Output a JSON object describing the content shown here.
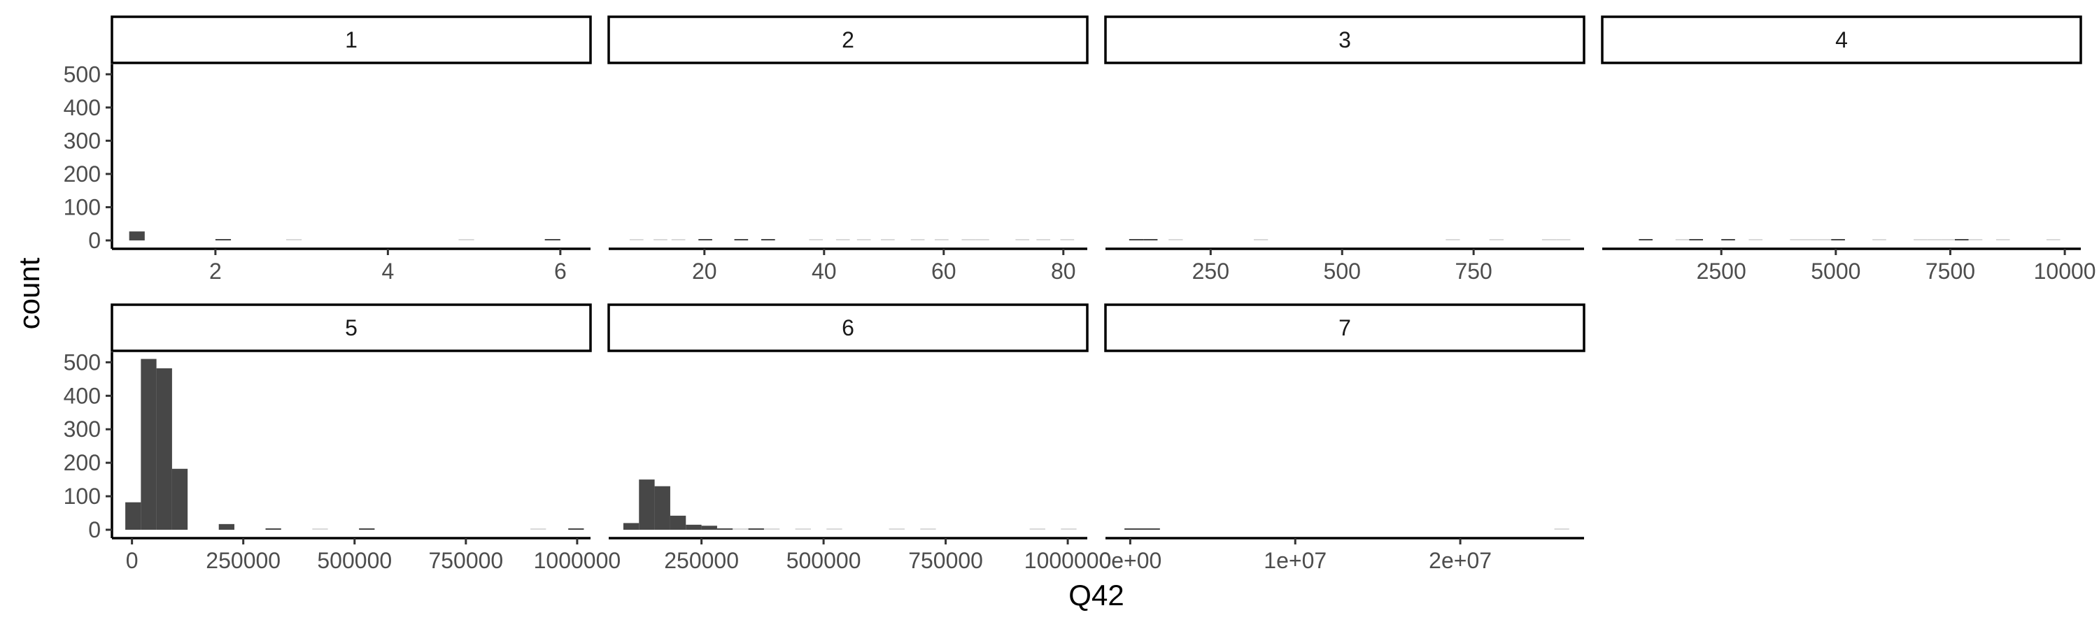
{
  "chart_data": {
    "type": "bar",
    "subtype": "faceted-histogram",
    "xlabel": "Q42",
    "ylabel": "count",
    "ylim": [
      0,
      530
    ],
    "y_ticks": [
      0,
      100,
      200,
      300,
      400,
      500
    ],
    "y_tick_labels": [
      "0",
      "100",
      "200",
      "300",
      "400",
      "500"
    ],
    "grid": false,
    "bar_color": "#474747",
    "faint_color": "#d9d9d9",
    "facets": [
      {
        "label": "1",
        "xlim": [
          0.8,
          6.35
        ],
        "x_ticks": [
          2,
          4,
          6
        ],
        "x_tick_labels": [
          "2",
          "4",
          "6"
        ],
        "bins": [
          {
            "x0": 1.0,
            "x1": 1.18,
            "count": 27
          },
          {
            "x0": 2.0,
            "x1": 2.18,
            "count": 2
          },
          {
            "x0": 2.82,
            "x1": 3.0,
            "count": 1
          },
          {
            "x0": 4.82,
            "x1": 5.0,
            "count": 1
          },
          {
            "x0": 5.82,
            "x1": 6.0,
            "count": 2
          }
        ]
      },
      {
        "label": "2",
        "xlim": [
          4,
          84
        ],
        "x_ticks": [
          20,
          40,
          60,
          80
        ],
        "x_tick_labels": [
          "20",
          "40",
          "60",
          "80"
        ],
        "bins": [
          {
            "x0": 7.5,
            "x1": 9.8,
            "count": 1
          },
          {
            "x0": 11.5,
            "x1": 13.8,
            "count": 1
          },
          {
            "x0": 14.5,
            "x1": 16.8,
            "count": 1
          },
          {
            "x0": 19.0,
            "x1": 21.3,
            "count": 3
          },
          {
            "x0": 25.0,
            "x1": 27.3,
            "count": 3
          },
          {
            "x0": 29.5,
            "x1": 31.8,
            "count": 2
          },
          {
            "x0": 37.5,
            "x1": 39.8,
            "count": 1
          },
          {
            "x0": 42.0,
            "x1": 44.3,
            "count": 1
          },
          {
            "x0": 45.5,
            "x1": 47.8,
            "count": 1
          },
          {
            "x0": 49.5,
            "x1": 51.8,
            "count": 1
          },
          {
            "x0": 54.5,
            "x1": 56.8,
            "count": 1
          },
          {
            "x0": 58.5,
            "x1": 60.8,
            "count": 1
          },
          {
            "x0": 63.0,
            "x1": 65.3,
            "count": 1
          },
          {
            "x0": 65.3,
            "x1": 67.6,
            "count": 1
          },
          {
            "x0": 72.0,
            "x1": 74.3,
            "count": 1
          },
          {
            "x0": 75.5,
            "x1": 77.8,
            "count": 1
          },
          {
            "x0": 79.5,
            "x1": 81.8,
            "count": 1
          }
        ]
      },
      {
        "label": "3",
        "xlim": [
          50,
          960
        ],
        "x_ticks": [
          250,
          500,
          750
        ],
        "x_tick_labels": [
          "250",
          "500",
          "750"
        ],
        "bins": [
          {
            "x0": 95,
            "x1": 122,
            "count": 4
          },
          {
            "x0": 122,
            "x1": 149,
            "count": 2
          },
          {
            "x0": 170,
            "x1": 197,
            "count": 1
          },
          {
            "x0": 332,
            "x1": 359,
            "count": 1
          },
          {
            "x0": 697,
            "x1": 724,
            "count": 1
          },
          {
            "x0": 780,
            "x1": 807,
            "count": 1
          },
          {
            "x0": 880,
            "x1": 907,
            "count": 1
          },
          {
            "x0": 907,
            "x1": 934,
            "count": 1
          }
        ]
      },
      {
        "label": "4",
        "xlim": [
          -100,
          10350
        ],
        "x_ticks": [
          2500,
          5000,
          7500,
          10000
        ],
        "x_tick_labels": [
          "2500",
          "5000",
          "7500",
          "10000"
        ],
        "bins": [
          {
            "x0": 700,
            "x1": 1000,
            "count": 4
          },
          {
            "x0": 1500,
            "x1": 1800,
            "count": 1
          },
          {
            "x0": 1800,
            "x1": 2100,
            "count": 2
          },
          {
            "x0": 2500,
            "x1": 2800,
            "count": 2
          },
          {
            "x0": 3100,
            "x1": 3400,
            "count": 1
          },
          {
            "x0": 4000,
            "x1": 4300,
            "count": 1
          },
          {
            "x0": 4300,
            "x1": 4600,
            "count": 1
          },
          {
            "x0": 4600,
            "x1": 4900,
            "count": 1
          },
          {
            "x0": 4900,
            "x1": 5200,
            "count": 3
          },
          {
            "x0": 5800,
            "x1": 6100,
            "count": 1
          },
          {
            "x0": 6700,
            "x1": 7000,
            "count": 1
          },
          {
            "x0": 7000,
            "x1": 7300,
            "count": 1
          },
          {
            "x0": 7300,
            "x1": 7600,
            "count": 1
          },
          {
            "x0": 7600,
            "x1": 7900,
            "count": 2
          },
          {
            "x0": 7900,
            "x1": 8200,
            "count": 1
          },
          {
            "x0": 8500,
            "x1": 8800,
            "count": 1
          },
          {
            "x0": 9600,
            "x1": 9900,
            "count": 1
          }
        ]
      },
      {
        "label": "5",
        "xlim": [
          -45000,
          1030000
        ],
        "x_ticks": [
          0,
          250000,
          500000,
          750000,
          1000000
        ],
        "x_tick_labels": [
          "0",
          "250000",
          "500000",
          "750000",
          "1000000"
        ],
        "bins": [
          {
            "x0": -15000,
            "x1": 20000,
            "count": 82
          },
          {
            "x0": 20000,
            "x1": 55000,
            "count": 510
          },
          {
            "x0": 55000,
            "x1": 90000,
            "count": 482
          },
          {
            "x0": 90000,
            "x1": 125000,
            "count": 182
          },
          {
            "x0": 195000,
            "x1": 230000,
            "count": 17
          },
          {
            "x0": 300000,
            "x1": 335000,
            "count": 4
          },
          {
            "x0": 405000,
            "x1": 440000,
            "count": 1
          },
          {
            "x0": 510000,
            "x1": 545000,
            "count": 3
          },
          {
            "x0": 895000,
            "x1": 930000,
            "count": 1
          },
          {
            "x0": 980000,
            "x1": 1015000,
            "count": 4
          }
        ]
      },
      {
        "label": "6",
        "xlim": [
          60000,
          1040000
        ],
        "x_ticks": [
          250000,
          500000,
          750000,
          1000000
        ],
        "x_tick_labels": [
          "250000",
          "500000",
          "750000",
          "1000000"
        ],
        "bins": [
          {
            "x0": 90000,
            "x1": 122000,
            "count": 20
          },
          {
            "x0": 122000,
            "x1": 154000,
            "count": 150
          },
          {
            "x0": 154000,
            "x1": 186000,
            "count": 130
          },
          {
            "x0": 186000,
            "x1": 218000,
            "count": 42
          },
          {
            "x0": 218000,
            "x1": 250000,
            "count": 15
          },
          {
            "x0": 250000,
            "x1": 282000,
            "count": 12
          },
          {
            "x0": 282000,
            "x1": 314000,
            "count": 2
          },
          {
            "x0": 314000,
            "x1": 346000,
            "count": 1
          },
          {
            "x0": 346000,
            "x1": 378000,
            "count": 4
          },
          {
            "x0": 378000,
            "x1": 410000,
            "count": 1
          },
          {
            "x0": 442000,
            "x1": 474000,
            "count": 1
          },
          {
            "x0": 506000,
            "x1": 538000,
            "count": 1
          },
          {
            "x0": 634000,
            "x1": 666000,
            "count": 1
          },
          {
            "x0": 698000,
            "x1": 730000,
            "count": 1
          },
          {
            "x0": 922000,
            "x1": 954000,
            "count": 1
          },
          {
            "x0": 986000,
            "x1": 1018000,
            "count": 1
          }
        ]
      },
      {
        "label": "7",
        "xlim": [
          -1500000,
          27500000
        ],
        "x_ticks": [
          0,
          10000000,
          20000000
        ],
        "x_tick_labels": [
          "0e+00",
          "1e+07",
          "2e+07"
        ],
        "bins": [
          {
            "x0": -350000,
            "x1": 1800000,
            "count": 2
          },
          {
            "x0": 25700000,
            "x1": 26600000,
            "count": 1
          }
        ]
      }
    ]
  }
}
